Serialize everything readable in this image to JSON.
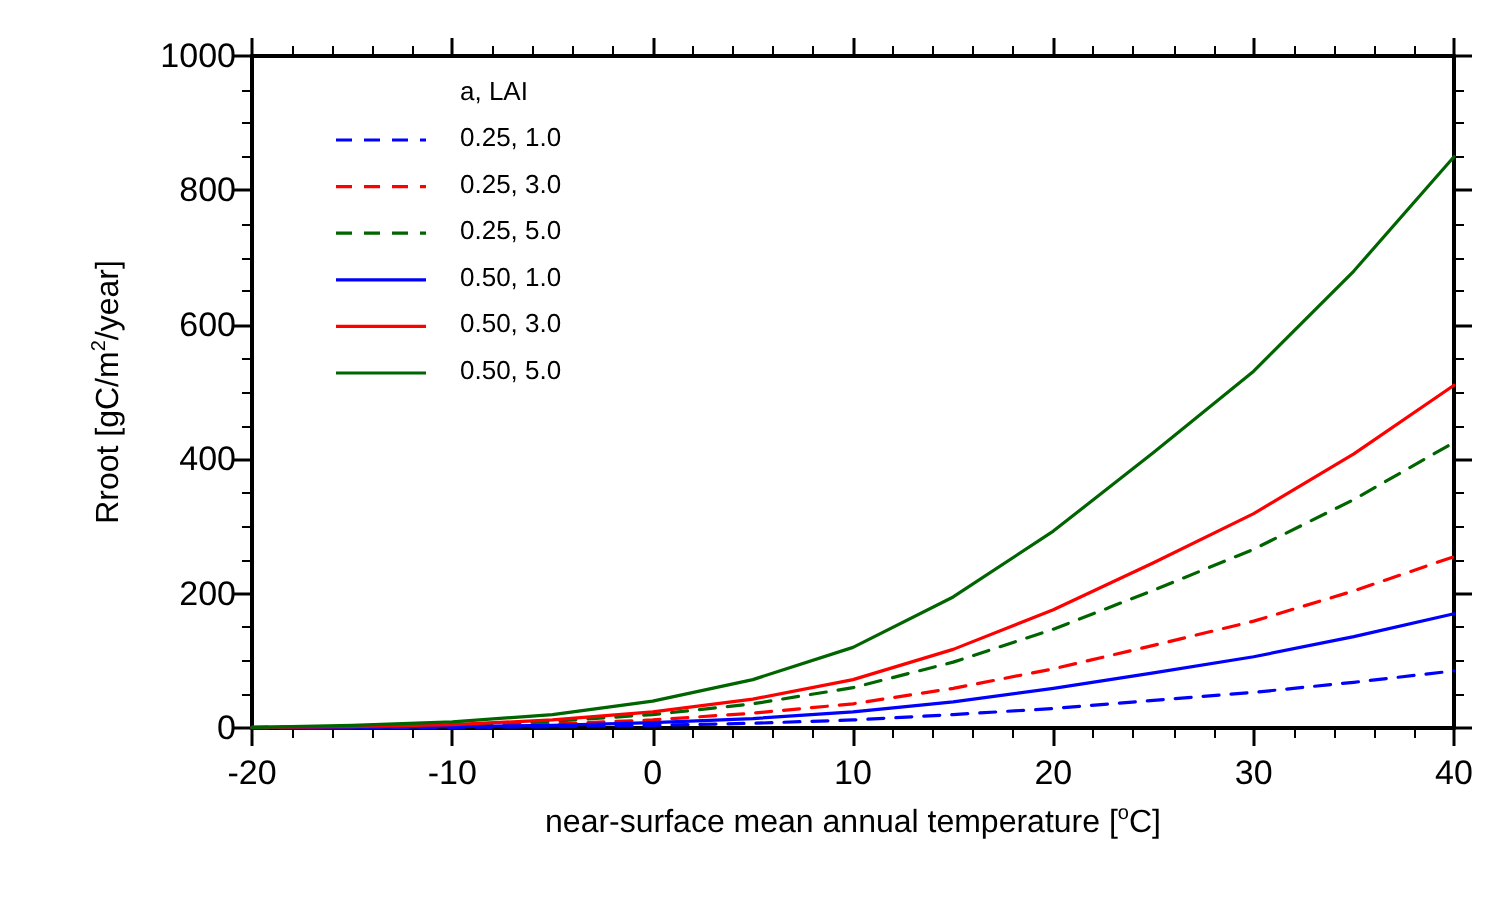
{
  "chart_data": {
    "type": "line",
    "xlabel": "near-surface mean annual temperature [$^{o}$C]",
    "ylabel": "Rroot [gC/m$^{2}$/year]",
    "legend_title": "a, LAI",
    "legend": "top left",
    "marker": "none",
    "grid": false,
    "x": [
      -20,
      -15,
      -10,
      -5,
      0,
      5,
      10,
      15,
      20,
      25,
      30,
      35,
      40
    ],
    "xlim": [
      -20,
      40
    ],
    "xticks": [
      -20,
      -10,
      0,
      10,
      20,
      30,
      40
    ],
    "ylim": [
      0,
      1000
    ],
    "yticks": [
      0,
      200,
      400,
      600,
      800,
      1000
    ],
    "series": [
      {
        "name": "0.25, 1.0",
        "color": "#0000ff",
        "line_style": "dashed",
        "values": [
          0,
          0,
          1,
          2,
          4,
          7,
          12,
          20,
          29,
          41,
          53,
          68,
          85
        ]
      },
      {
        "name": "0.25, 3.0",
        "color": "#ff0000",
        "line_style": "dashed",
        "values": [
          0,
          1,
          3,
          6,
          12,
          22,
          36,
          59,
          88,
          123,
          159,
          204,
          255
        ]
      },
      {
        "name": "0.25, 5.0",
        "color": "#006400",
        "line_style": "dashed",
        "values": [
          1,
          2,
          5,
          10,
          20,
          36,
          60,
          98,
          147,
          205,
          266,
          340,
          425
        ]
      },
      {
        "name": "0.50, 1.0",
        "color": "#0000ff",
        "line_style": "solid",
        "values": [
          0,
          1,
          2,
          4,
          8,
          14,
          24,
          39,
          59,
          82,
          106,
          136,
          170
        ]
      },
      {
        "name": "0.50, 3.0",
        "color": "#ff0000",
        "line_style": "solid",
        "values": [
          1,
          2,
          5,
          12,
          24,
          43,
          72,
          117,
          176,
          246,
          319,
          408,
          510
        ]
      },
      {
        "name": "0.50, 5.0",
        "color": "#006400",
        "line_style": "solid",
        "values": [
          1,
          4,
          9,
          20,
          40,
          72,
          120,
          195,
          293,
          410,
          531,
          680,
          850
        ]
      }
    ]
  }
}
